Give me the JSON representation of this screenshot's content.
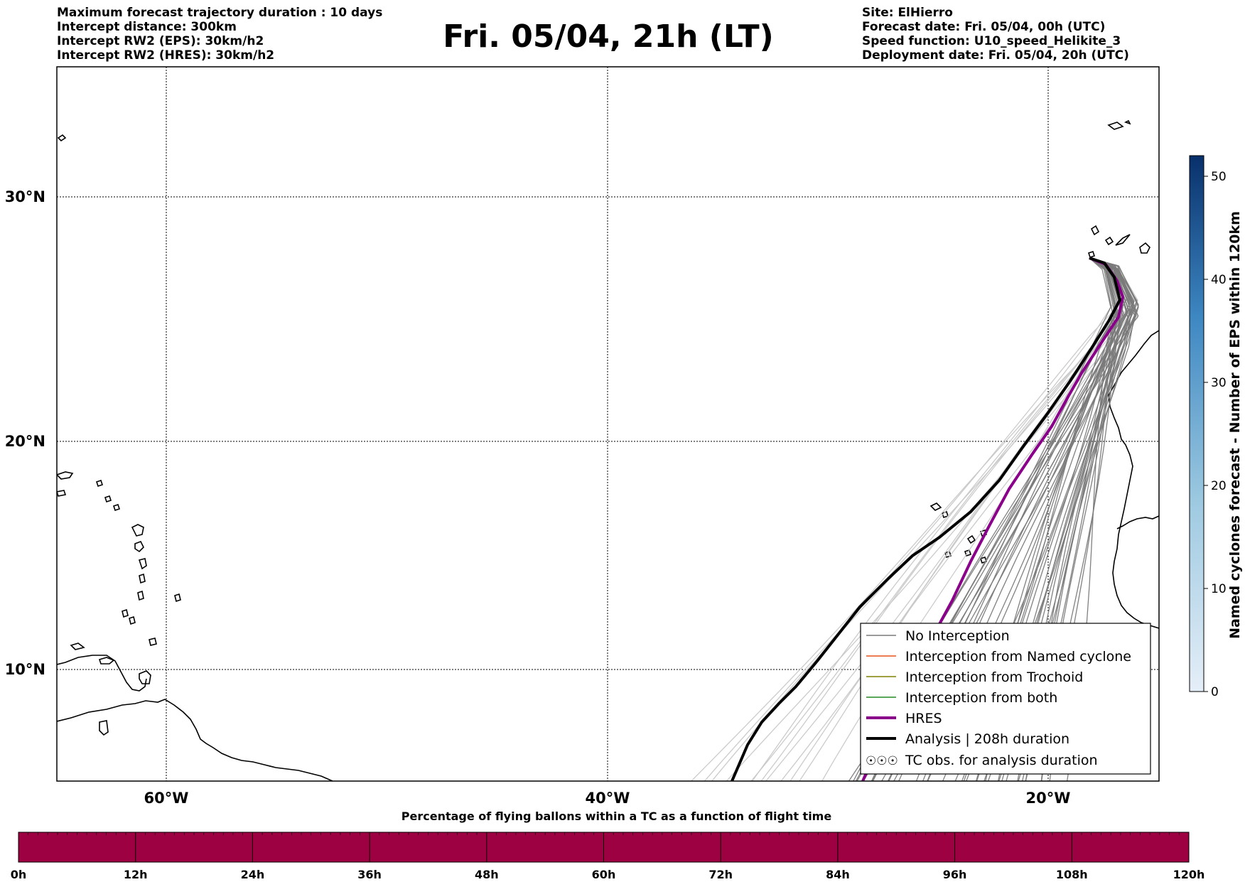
{
  "header": {
    "left": [
      "Maximum forecast trajectory duration : 10 days",
      "Intercept distance: 300km",
      "Intercept RW2 (EPS):  30km/h2",
      "Intercept RW2 (HRES): 30km/h2"
    ],
    "title": "Fri. 05/04, 21h (LT)",
    "right": [
      "Site: ElHierro",
      "Forecast date: Fri. 05/04, 00h (UTC)",
      "Speed function: U10_speed_Helikite_3",
      "Deployment date: Fri. 05/04, 20h (UTC)"
    ]
  },
  "map": {
    "lat_labels": [
      "30°N",
      "20°N",
      "10°N"
    ],
    "lon_labels": [
      "60°W",
      "40°W",
      "20°W"
    ],
    "colors": {
      "no_interception": "#7a7a7a",
      "faint_trajectory": "#c8c8c8",
      "named_cyclone": "#e8501c",
      "trochoid": "#808000",
      "both": "#228b22",
      "hres": "#8b008b",
      "analysis": "#000000"
    }
  },
  "legend": {
    "items": [
      "No Interception",
      "Interception from Named cyclone",
      "Interception from Trochoid",
      "Interception from both",
      "HRES",
      "Analysis | 208h duration",
      "TC obs. for analysis duration"
    ],
    "tc_symbol": "☉☉☉"
  },
  "colorbar": {
    "title": "Named cyclones forecast - Number of EPS within 120km",
    "ticks": [
      "0",
      "10",
      "20",
      "30",
      "40",
      "50"
    ],
    "tick_values": [
      0,
      10,
      20,
      30,
      40,
      50
    ],
    "max": 52,
    "color_low": "#e5eef8",
    "color_high": "#08306b"
  },
  "bottom_bar": {
    "title": "Percentage of flying ballons within a TC as a function of flight time",
    "ticks": [
      "0h",
      "12h",
      "24h",
      "36h",
      "48h",
      "60h",
      "72h",
      "84h",
      "96h",
      "108h",
      "120h"
    ],
    "fill_color": "#9e0142"
  }
}
